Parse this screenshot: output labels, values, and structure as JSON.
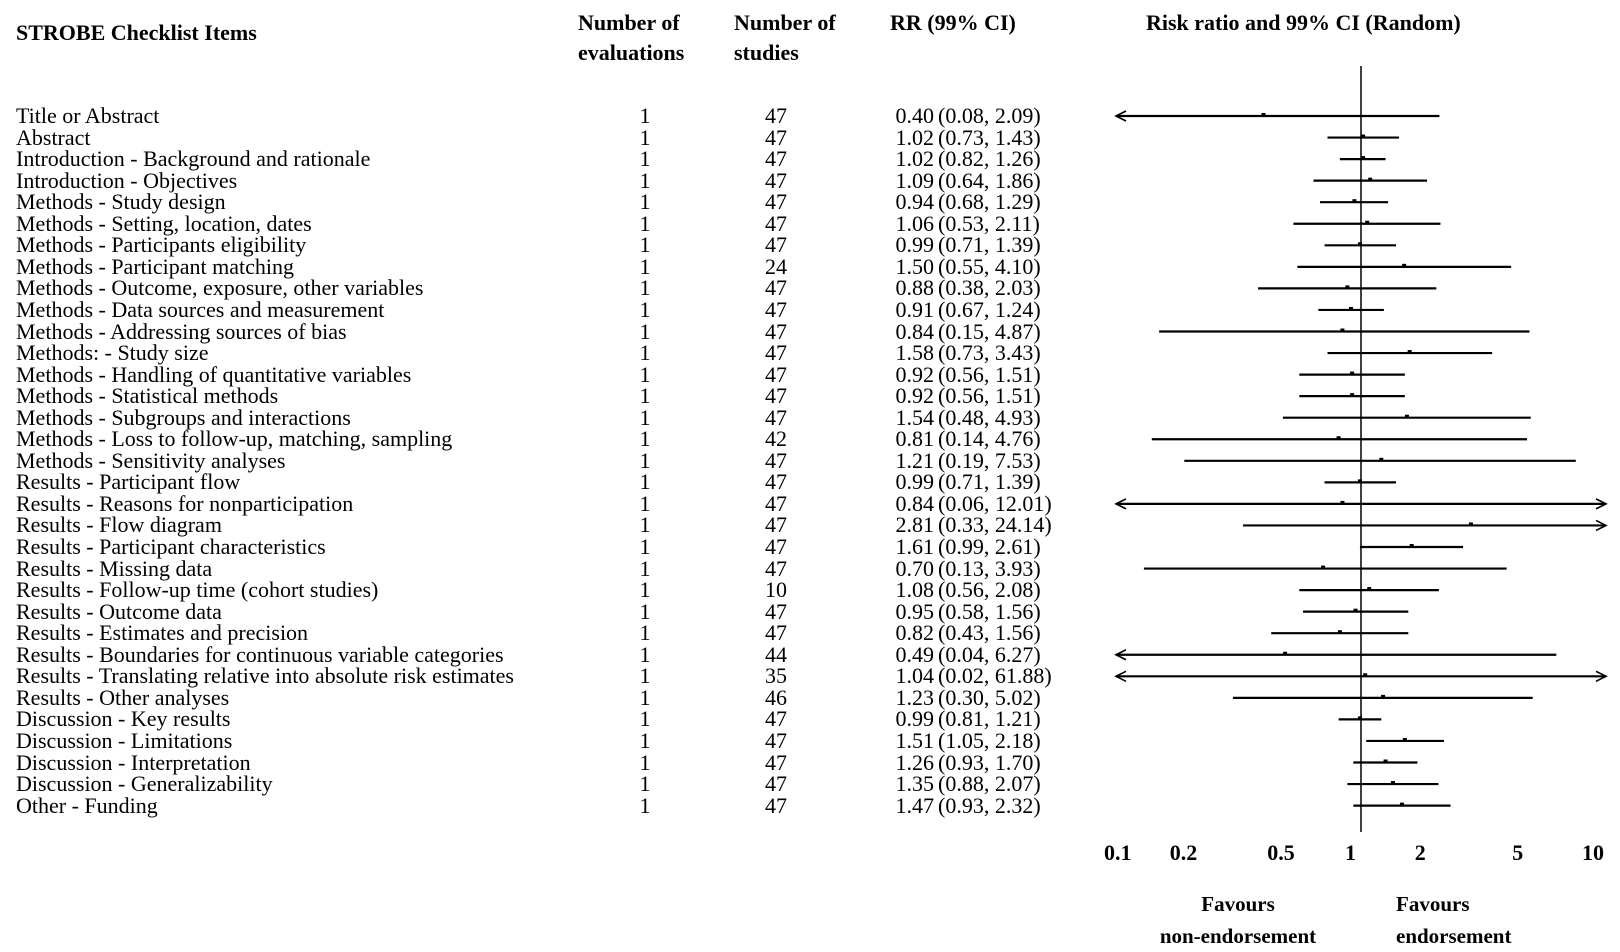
{
  "headers": {
    "items": "STROBE  Checklist Items",
    "evaluations_1": "Number  of",
    "evaluations_2": "evaluations",
    "studies_1": "Number  of",
    "studies_2": "studies",
    "rr": "RR (99% CI)",
    "plot": "Risk ratio  and  99% CI (Random)"
  },
  "favours": {
    "left_1": "Favours",
    "left_2": "non-endorsement",
    "right_1": "Favours",
    "right_2": "endorsement"
  },
  "chart_data": {
    "type": "forest",
    "title": "Risk ratio  and  99% CI (Random)",
    "x_scale": "log",
    "xlim": [
      0.1,
      10
    ],
    "x_ticks": [
      0.1,
      0.2,
      0.5,
      1,
      2,
      5,
      10
    ],
    "x_tick_labels": [
      "0.1",
      "0.2",
      "0.5",
      "1",
      "2",
      "5",
      "10"
    ],
    "reference_line": 1,
    "rows": [
      {
        "item": "Title or Abstract",
        "evaluations": "1",
        "studies": "47",
        "rr": 0.4,
        "lo": 0.08,
        "hi": 2.09,
        "rr_text": "0.40",
        "ci_text": "(0.08, 2.09)"
      },
      {
        "item": "Abstract",
        "evaluations": "1",
        "studies": "47",
        "rr": 1.02,
        "lo": 0.73,
        "hi": 1.43,
        "rr_text": "1.02",
        "ci_text": "(0.73, 1.43)"
      },
      {
        "item": "Introduction - Background and rationale",
        "evaluations": "1",
        "studies": "47",
        "rr": 1.02,
        "lo": 0.82,
        "hi": 1.26,
        "rr_text": "1.02",
        "ci_text": "(0.82, 1.26)"
      },
      {
        "item": "Introduction - Objectives",
        "evaluations": "1",
        "studies": "47",
        "rr": 1.09,
        "lo": 0.64,
        "hi": 1.86,
        "rr_text": "1.09",
        "ci_text": "(0.64, 1.86)"
      },
      {
        "item": "Methods - Study design",
        "evaluations": "1",
        "studies": "47",
        "rr": 0.94,
        "lo": 0.68,
        "hi": 1.29,
        "rr_text": "0.94",
        "ci_text": "(0.68, 1.29)"
      },
      {
        "item": "Methods - Setting, location, dates",
        "evaluations": "1",
        "studies": "47",
        "rr": 1.06,
        "lo": 0.53,
        "hi": 2.11,
        "rr_text": "1.06",
        "ci_text": "(0.53, 2.11)"
      },
      {
        "item": "Methods - Participants eligibility",
        "evaluations": "1",
        "studies": "47",
        "rr": 0.99,
        "lo": 0.71,
        "hi": 1.39,
        "rr_text": "0.99",
        "ci_text": "(0.71, 1.39)"
      },
      {
        "item": "Methods - Participant matching",
        "evaluations": "1",
        "studies": "24",
        "rr": 1.5,
        "lo": 0.55,
        "hi": 4.1,
        "rr_text": "1.50",
        "ci_text": "(0.55, 4.10)"
      },
      {
        "item": "Methods - Outcome, exposure, other variables",
        "evaluations": "1",
        "studies": "47",
        "rr": 0.88,
        "lo": 0.38,
        "hi": 2.03,
        "rr_text": "0.88",
        "ci_text": "(0.38, 2.03)"
      },
      {
        "item": "Methods - Data sources and measurement",
        "evaluations": "1",
        "studies": "47",
        "rr": 0.91,
        "lo": 0.67,
        "hi": 1.24,
        "rr_text": "0.91",
        "ci_text": "(0.67, 1.24)"
      },
      {
        "item": "Methods - Addressing sources of bias",
        "evaluations": "1",
        "studies": "47",
        "rr": 0.84,
        "lo": 0.15,
        "hi": 4.87,
        "rr_text": "0.84",
        "ci_text": "(0.15, 4.87)"
      },
      {
        "item": "Methods: - Study size",
        "evaluations": "1",
        "studies": "47",
        "rr": 1.58,
        "lo": 0.73,
        "hi": 3.43,
        "rr_text": "1.58",
        "ci_text": "(0.73, 3.43)"
      },
      {
        "item": "Methods - Handling of quantitative variables",
        "evaluations": "1",
        "studies": "47",
        "rr": 0.92,
        "lo": 0.56,
        "hi": 1.51,
        "rr_text": "0.92",
        "ci_text": "(0.56, 1.51)"
      },
      {
        "item": "Methods - Statistical methods",
        "evaluations": "1",
        "studies": "47",
        "rr": 0.92,
        "lo": 0.56,
        "hi": 1.51,
        "rr_text": "0.92",
        "ci_text": "(0.56, 1.51)"
      },
      {
        "item": "Methods - Subgroups and interactions",
        "evaluations": "1",
        "studies": "47",
        "rr": 1.54,
        "lo": 0.48,
        "hi": 4.93,
        "rr_text": "1.54",
        "ci_text": "(0.48, 4.93)"
      },
      {
        "item": "Methods - Loss to follow-up, matching, sampling",
        "evaluations": "1",
        "studies": "42",
        "rr": 0.81,
        "lo": 0.14,
        "hi": 4.76,
        "rr_text": "0.81",
        "ci_text": "(0.14, 4.76)"
      },
      {
        "item": "Methods - Sensitivity analyses",
        "evaluations": "1",
        "studies": "47",
        "rr": 1.21,
        "lo": 0.19,
        "hi": 7.53,
        "rr_text": "1.21",
        "ci_text": "(0.19, 7.53)"
      },
      {
        "item": "Results - Participant flow",
        "evaluations": "1",
        "studies": "47",
        "rr": 0.99,
        "lo": 0.71,
        "hi": 1.39,
        "rr_text": "0.99",
        "ci_text": "(0.71, 1.39)"
      },
      {
        "item": "Results - Reasons for nonparticipation",
        "evaluations": "1",
        "studies": "47",
        "rr": 0.84,
        "lo": 0.06,
        "hi": 12.01,
        "rr_text": "0.84",
        "ci_text": "(0.06, 12.01)"
      },
      {
        "item": "Results - Flow diagram",
        "evaluations": "1",
        "studies": "47",
        "rr": 2.81,
        "lo": 0.33,
        "hi": 24.14,
        "rr_text": "2.81",
        "ci_text": "(0.33, 24.14)"
      },
      {
        "item": "Results - Participant characteristics",
        "evaluations": "1",
        "studies": "47",
        "rr": 1.61,
        "lo": 0.99,
        "hi": 2.61,
        "rr_text": "1.61",
        "ci_text": "(0.99, 2.61)"
      },
      {
        "item": "Results - Missing data",
        "evaluations": "1",
        "studies": "47",
        "rr": 0.7,
        "lo": 0.13,
        "hi": 3.93,
        "rr_text": "0.70",
        "ci_text": "(0.13, 3.93)"
      },
      {
        "item": "Results - Follow-up time (cohort studies)",
        "evaluations": "1",
        "studies": "10",
        "rr": 1.08,
        "lo": 0.56,
        "hi": 2.08,
        "rr_text": "1.08",
        "ci_text": "(0.56, 2.08)"
      },
      {
        "item": "Results - Outcome data",
        "evaluations": "1",
        "studies": "47",
        "rr": 0.95,
        "lo": 0.58,
        "hi": 1.56,
        "rr_text": "0.95",
        "ci_text": "(0.58, 1.56)"
      },
      {
        "item": "Results - Estimates and precision",
        "evaluations": "1",
        "studies": "47",
        "rr": 0.82,
        "lo": 0.43,
        "hi": 1.56,
        "rr_text": "0.82",
        "ci_text": "(0.43, 1.56)"
      },
      {
        "item": "Results - Boundaries for continuous variable categories",
        "evaluations": "1",
        "studies": "44",
        "rr": 0.49,
        "lo": 0.04,
        "hi": 6.27,
        "rr_text": "0.49",
        "ci_text": "(0.04, 6.27)"
      },
      {
        "item": "Results - Translating relative into absolute risk estimates",
        "evaluations": "1",
        "studies": "35",
        "rr": 1.04,
        "lo": 0.02,
        "hi": 61.88,
        "rr_text": "1.04",
        "ci_text": "(0.02, 61.88)"
      },
      {
        "item": "Results - Other analyses",
        "evaluations": "1",
        "studies": "46",
        "rr": 1.23,
        "lo": 0.3,
        "hi": 5.02,
        "rr_text": "1.23",
        "ci_text": "(0.30, 5.02)"
      },
      {
        "item": "Discussion - Key results",
        "evaluations": "1",
        "studies": "47",
        "rr": 0.99,
        "lo": 0.81,
        "hi": 1.21,
        "rr_text": "0.99",
        "ci_text": "(0.81, 1.21)"
      },
      {
        "item": "Discussion - Limitations",
        "evaluations": "1",
        "studies": "47",
        "rr": 1.51,
        "lo": 1.05,
        "hi": 2.18,
        "rr_text": "1.51",
        "ci_text": "(1.05, 2.18)"
      },
      {
        "item": "Discussion - Interpretation",
        "evaluations": "1",
        "studies": "47",
        "rr": 1.26,
        "lo": 0.93,
        "hi": 1.7,
        "rr_text": "1.26",
        "ci_text": "(0.93, 1.70)"
      },
      {
        "item": "Discussion - Generalizability",
        "evaluations": "1",
        "studies": "47",
        "rr": 1.35,
        "lo": 0.88,
        "hi": 2.07,
        "rr_text": "1.35",
        "ci_text": "(0.88, 2.07)"
      },
      {
        "item": "Other - Funding",
        "evaluations": "1",
        "studies": "47",
        "rr": 1.47,
        "lo": 0.93,
        "hi": 2.32,
        "rr_text": "1.47",
        "ci_text": "(0.93, 2.32)"
      }
    ]
  }
}
